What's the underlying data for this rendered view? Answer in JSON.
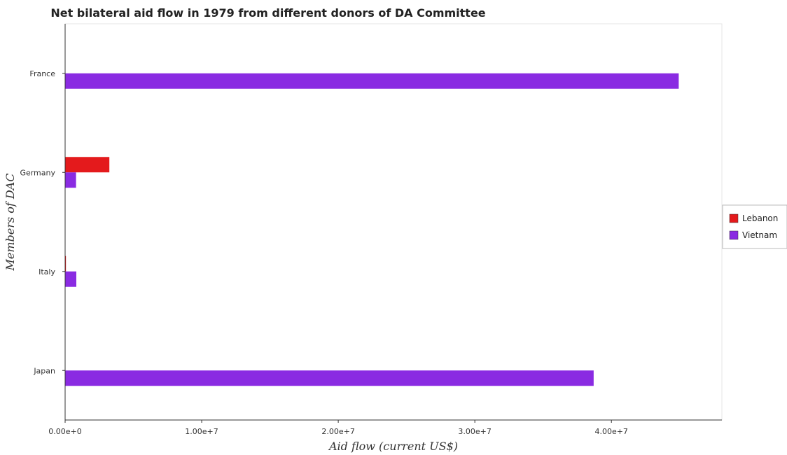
{
  "chart_data": {
    "type": "bar",
    "orientation": "horizontal",
    "title": "Net bilateral aid flow in 1979 from different donors of DA Committee",
    "xlabel": "Aid flow (current US$)",
    "ylabel": "Members of DAC",
    "categories": [
      "France",
      "Germany",
      "Italy",
      "Japan"
    ],
    "series": [
      {
        "name": "Lebanon",
        "color": "#e41a1c",
        "values": [
          0,
          3240000,
          60000,
          0
        ]
      },
      {
        "name": "Vietnam",
        "color": "#8a2be2",
        "values": [
          44930000,
          800000,
          820000,
          38700000
        ]
      }
    ],
    "xlim": [
      0,
      47500000
    ],
    "xticks": [
      0,
      10000000,
      20000000,
      30000000,
      40000000
    ],
    "xtick_labels": [
      "0.00e+0",
      "1.00e+7",
      "2.00e+7",
      "3.00e+7",
      "4.00e+7"
    ],
    "grid": false,
    "legend_position": "right"
  }
}
